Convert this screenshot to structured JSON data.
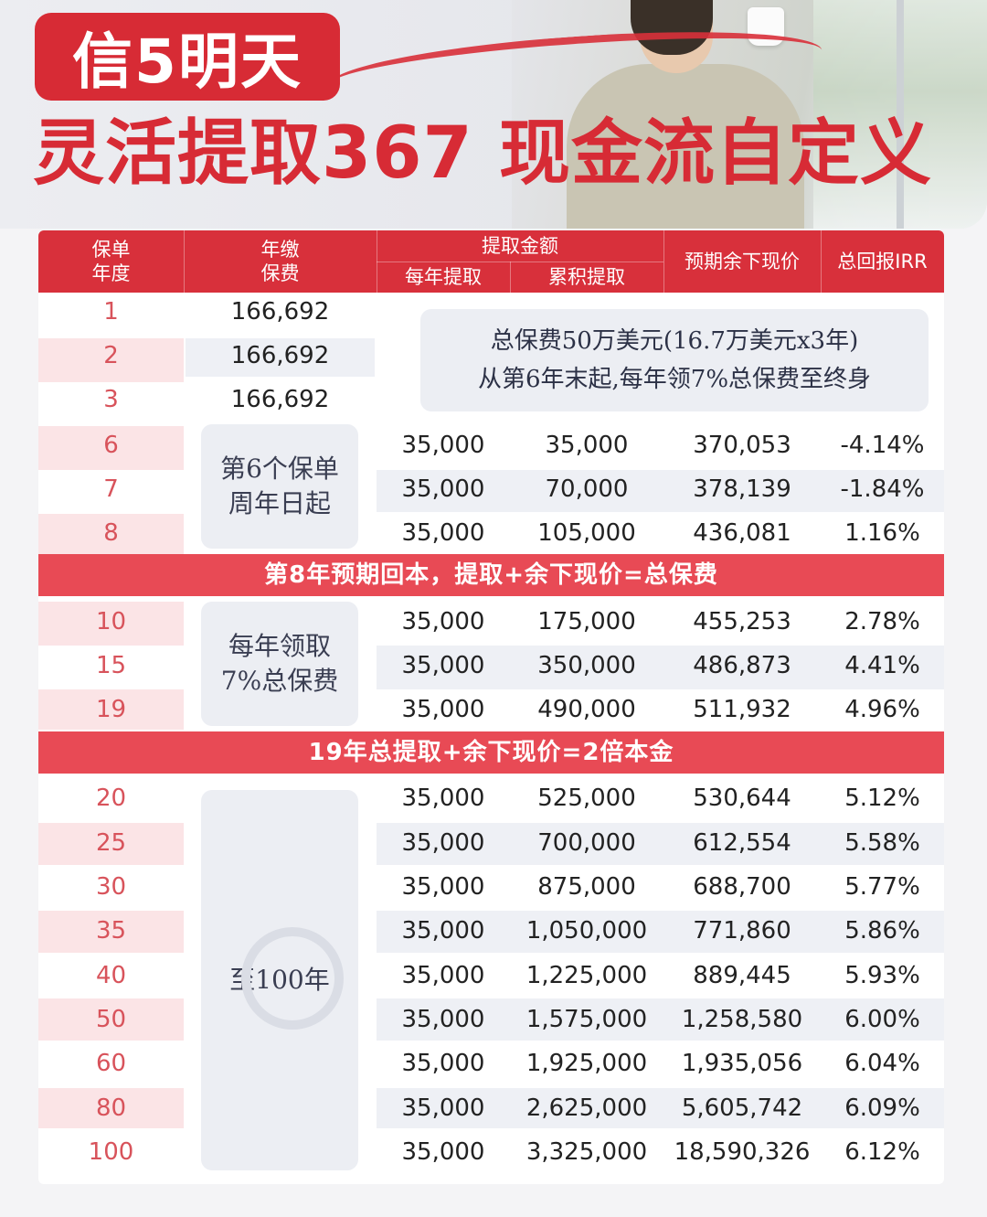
{
  "header": {
    "brand": "信5明天",
    "headline": "灵活提取367 现金流自定义"
  },
  "table": {
    "headers": {
      "policy_year": [
        "保单",
        "年度"
      ],
      "annual_premium": [
        "年缴",
        "保费"
      ],
      "withdrawal_group": "提取金额",
      "annual_withdrawal": "每年提取",
      "cumulative_withdrawal": "累积提取",
      "expected_cash_value": "预期余下现价",
      "total_irr": "总回报IRR"
    },
    "premium_rows": [
      {
        "year": "1",
        "premium": "166,692"
      },
      {
        "year": "2",
        "premium": "166,692"
      },
      {
        "year": "3",
        "premium": "166,692"
      }
    ],
    "info_note": {
      "line1": "总保费50万美元(16.7万美元x3年)",
      "line2": "从第6年末起,每年领7%总保费至终身"
    },
    "section1_label": "第6个保单周年日起",
    "section1_rows": [
      {
        "year": "6",
        "annual": "35,000",
        "cumulative": "35,000",
        "value": "370,053",
        "irr": "-4.14%"
      },
      {
        "year": "7",
        "annual": "35,000",
        "cumulative": "70,000",
        "value": "378,139",
        "irr": "-1.84%"
      },
      {
        "year": "8",
        "annual": "35,000",
        "cumulative": "105,000",
        "value": "436,081",
        "irr": "1.16%"
      }
    ],
    "band1": "第8年预期回本，提取+余下现价=总保费",
    "section2_label": "每年领取7%总保费",
    "section2_rows": [
      {
        "year": "10",
        "annual": "35,000",
        "cumulative": "175,000",
        "value": "455,253",
        "irr": "2.78%"
      },
      {
        "year": "15",
        "annual": "35,000",
        "cumulative": "350,000",
        "value": "486,873",
        "irr": "4.41%"
      },
      {
        "year": "19",
        "annual": "35,000",
        "cumulative": "490,000",
        "value": "511,932",
        "irr": "4.96%"
      }
    ],
    "band2": "19年总提取+余下现价=2倍本金",
    "section3_label": "至100年",
    "section3_rows": [
      {
        "year": "20",
        "annual": "35,000",
        "cumulative": "525,000",
        "value": "530,644",
        "irr": "5.12%"
      },
      {
        "year": "25",
        "annual": "35,000",
        "cumulative": "700,000",
        "value": "612,554",
        "irr": "5.58%"
      },
      {
        "year": "30",
        "annual": "35,000",
        "cumulative": "875,000",
        "value": "688,700",
        "irr": "5.77%"
      },
      {
        "year": "35",
        "annual": "35,000",
        "cumulative": "1,050,000",
        "value": "771,860",
        "irr": "5.86%"
      },
      {
        "year": "40",
        "annual": "35,000",
        "cumulative": "1,225,000",
        "value": "889,445",
        "irr": "5.93%"
      },
      {
        "year": "50",
        "annual": "35,000",
        "cumulative": "1,575,000",
        "value": "1,258,580",
        "irr": "6.00%"
      },
      {
        "year": "60",
        "annual": "35,000",
        "cumulative": "1,925,000",
        "value": "1,935,056",
        "irr": "6.04%"
      },
      {
        "year": "80",
        "annual": "35,000",
        "cumulative": "2,625,000",
        "value": "5,605,742",
        "irr": "6.09%"
      },
      {
        "year": "100",
        "annual": "35,000",
        "cumulative": "3,325,000",
        "value": "18,590,326",
        "irr": "6.12%"
      }
    ]
  }
}
